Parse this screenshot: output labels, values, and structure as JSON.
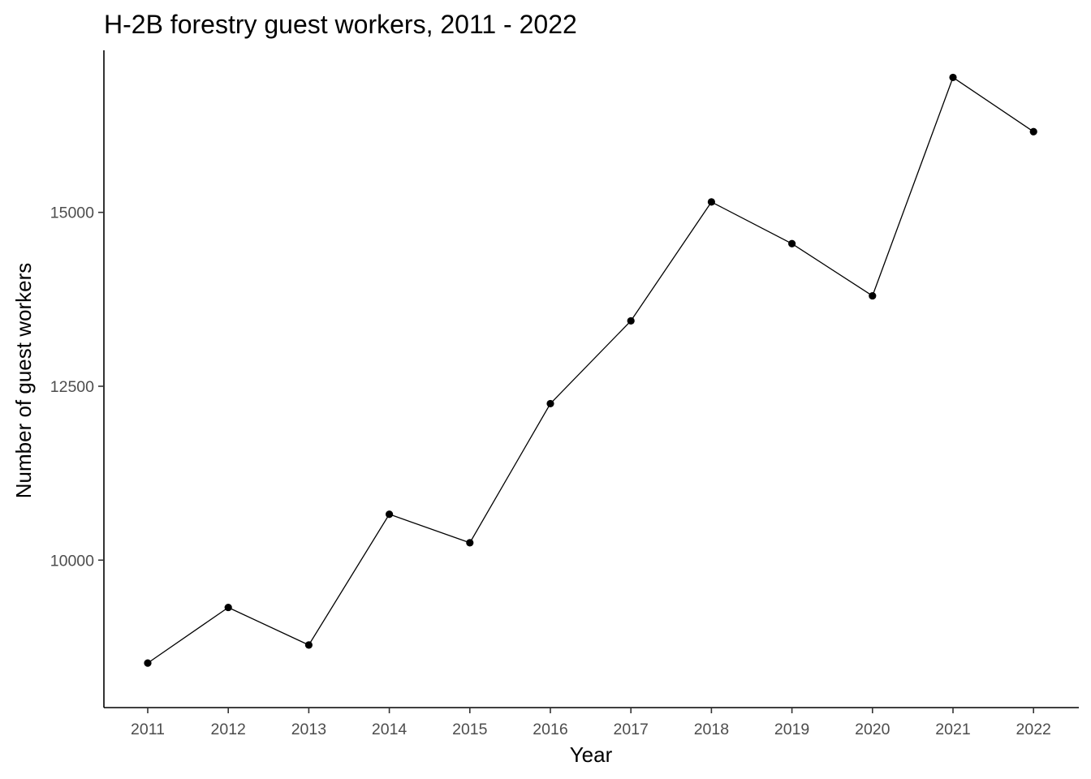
{
  "chart_data": {
    "type": "line",
    "title": "H-2B forestry guest workers, 2011 - 2022",
    "xlabel": "Year",
    "ylabel": "Number of guest workers",
    "x": [
      "2011",
      "2012",
      "2013",
      "2014",
      "2015",
      "2016",
      "2017",
      "2018",
      "2019",
      "2020",
      "2021",
      "2022"
    ],
    "series": [
      {
        "values": [
          8520,
          9320,
          8780,
          10660,
          10250,
          12250,
          13440,
          15150,
          14550,
          13800,
          16940,
          16160
        ]
      }
    ],
    "yticks": [
      10000,
      12500,
      15000
    ],
    "ylim": [
      7880,
      17330
    ],
    "grid": false,
    "line_color": "#000000",
    "point_color": "#000000",
    "axis_color": "#000000",
    "tick_label_color": "#4d4d4d"
  }
}
